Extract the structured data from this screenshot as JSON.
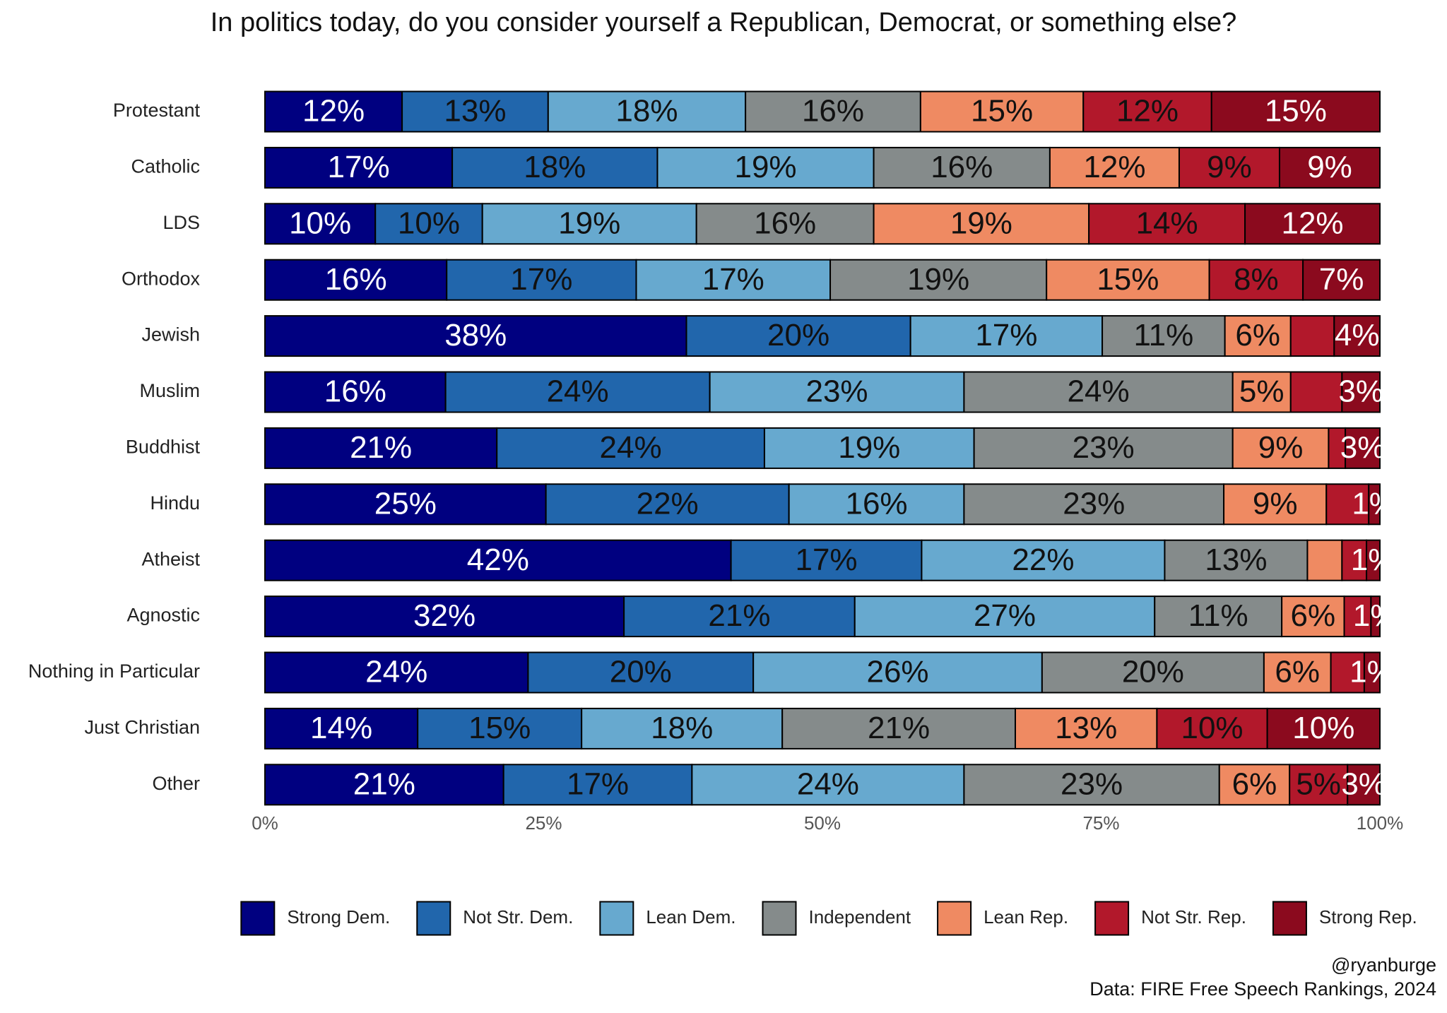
{
  "chart_data": {
    "type": "stacked_barh",
    "title": "In politics today, do you consider yourself a Republican, Democrat, or something else?",
    "categories": [
      "Protestant",
      "Catholic",
      "LDS",
      "Orthodox",
      "Jewish",
      "Muslim",
      "Buddhist",
      "Hindu",
      "Atheist",
      "Agnostic",
      "Nothing in Particular",
      "Just Christian",
      "Other"
    ],
    "series": [
      {
        "name": "Strong Dem.",
        "color": "#000080",
        "label_color": "#ffffff",
        "values": [
          12.3,
          16.8,
          9.9,
          16.3,
          37.8,
          16.2,
          20.8,
          25.2,
          41.8,
          32.2,
          23.6,
          13.7,
          21.4
        ],
        "value_labels": [
          "12%",
          "17%",
          "10%",
          "16%",
          "38%",
          "16%",
          "21%",
          "25%",
          "42%",
          "32%",
          "24%",
          "14%",
          "21%"
        ]
      },
      {
        "name": "Not Str. Dem.",
        "color": "#2166ac",
        "label_color": "#111111",
        "values": [
          13.1,
          18.4,
          9.6,
          17.0,
          20.1,
          23.7,
          24.0,
          21.8,
          17.1,
          20.7,
          20.2,
          14.7,
          16.9
        ],
        "value_labels": [
          "13%",
          "18%",
          "10%",
          "17%",
          "20%",
          "24%",
          "24%",
          "22%",
          "17%",
          "21%",
          "20%",
          "15%",
          "17%"
        ]
      },
      {
        "name": "Lean Dem.",
        "color": "#67a9cf",
        "label_color": "#111111",
        "values": [
          17.7,
          19.4,
          19.2,
          17.4,
          17.2,
          22.8,
          18.8,
          15.7,
          21.8,
          26.9,
          25.9,
          18.0,
          24.4
        ],
        "value_labels": [
          "18%",
          "19%",
          "19%",
          "17%",
          "17%",
          "23%",
          "19%",
          "16%",
          "22%",
          "27%",
          "26%",
          "18%",
          "24%"
        ]
      },
      {
        "name": "Independent",
        "color": "#858b8b",
        "label_color": "#111111",
        "values": [
          15.7,
          15.8,
          15.9,
          19.4,
          11.0,
          24.1,
          23.2,
          23.3,
          12.8,
          11.4,
          19.9,
          20.9,
          22.9
        ],
        "value_labels": [
          "16%",
          "16%",
          "16%",
          "19%",
          "11%",
          "24%",
          "23%",
          "23%",
          "13%",
          "11%",
          "20%",
          "21%",
          "23%"
        ]
      },
      {
        "name": "Lean Rep.",
        "color": "#ef8a62",
        "label_color": "#111111",
        "values": [
          14.6,
          11.6,
          19.3,
          14.6,
          5.9,
          5.2,
          8.6,
          9.2,
          3.1,
          5.6,
          6.0,
          12.7,
          6.3
        ],
        "value_labels": [
          "15%",
          "12%",
          "19%",
          "15%",
          "6%",
          "5%",
          "9%",
          "9%",
          null,
          "6%",
          "6%",
          "13%",
          "6%"
        ]
      },
      {
        "name": "Not Str. Rep.",
        "color": "#b2182b",
        "label_color": "#111111",
        "values": [
          11.5,
          9.0,
          14.0,
          8.4,
          3.9,
          4.6,
          1.5,
          3.8,
          2.2,
          2.4,
          3.0,
          9.9,
          5.2
        ],
        "value_labels": [
          "12%",
          "9%",
          "14%",
          "8%",
          null,
          null,
          null,
          null,
          null,
          null,
          null,
          "10%",
          "5%"
        ]
      },
      {
        "name": "Strong Rep.",
        "color": "#8b0a1e",
        "label_color": "#ffffff",
        "values": [
          15.1,
          9.0,
          12.1,
          6.9,
          4.1,
          3.4,
          3.1,
          1.0,
          1.2,
          0.8,
          1.4,
          10.1,
          2.9
        ],
        "value_labels": [
          "15%",
          "9%",
          "12%",
          "7%",
          "4%",
          "3%",
          "3%",
          "1%",
          "1%",
          "1%",
          "1%",
          "10%",
          "3%"
        ]
      }
    ],
    "xlim": [
      0,
      100
    ],
    "xticks": [
      {
        "value": 0,
        "label": "0%"
      },
      {
        "value": 25,
        "label": "25%"
      },
      {
        "value": 50,
        "label": "50%"
      },
      {
        "value": 75,
        "label": "75%"
      },
      {
        "value": 100,
        "label": "100%"
      }
    ],
    "legend": "bottom",
    "annotations": [
      "@ryanburge",
      "Data: FIRE Free Speech Rankings, 2024"
    ]
  }
}
